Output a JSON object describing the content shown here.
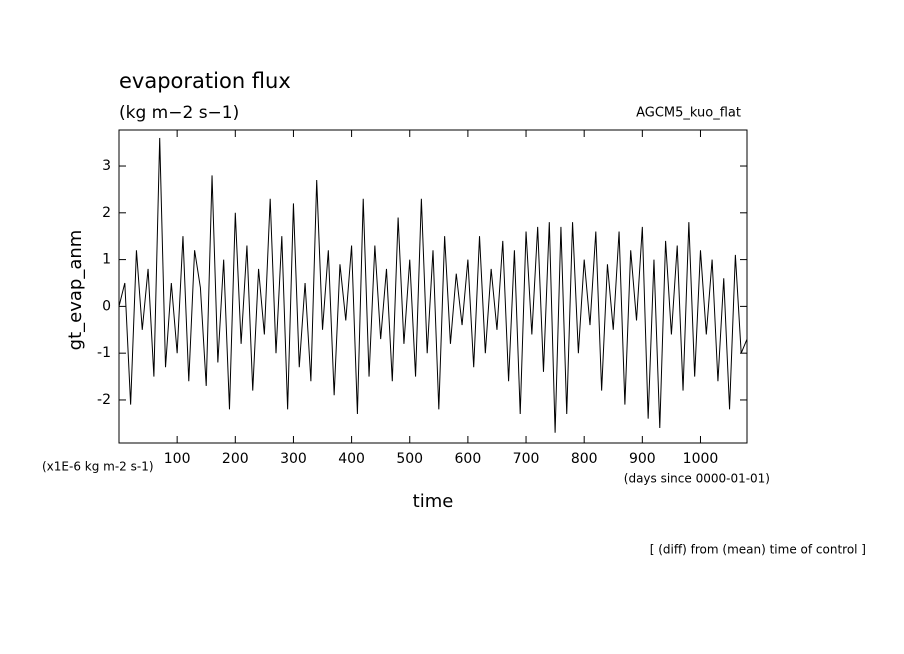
{
  "chart_data": {
    "type": "line",
    "title": "evaporation flux",
    "subtitle": "(kg m−2 s−1)",
    "run_label": "AGCM5_kuo_flat",
    "y_label": "gt_evap_anm",
    "y_unit": "(x1E-6 kg m-2 s-1)",
    "x_label": "time",
    "x_unit": "(days since 0000-01-01)",
    "footnote": "[ (diff) from (mean) time of control ]",
    "xlim": [
      0,
      1080
    ],
    "ylim": [
      -2.92,
      3.77
    ],
    "xticks": [
      100,
      200,
      300,
      400,
      500,
      600,
      700,
      800,
      900,
      1000
    ],
    "yticks": [
      -2,
      -1,
      0,
      1,
      2,
      3
    ],
    "x": [
      0,
      10,
      20,
      30,
      40,
      50,
      60,
      70,
      80,
      90,
      100,
      110,
      120,
      130,
      140,
      150,
      160,
      170,
      180,
      190,
      200,
      210,
      220,
      230,
      240,
      250,
      260,
      270,
      280,
      290,
      300,
      310,
      320,
      330,
      340,
      350,
      360,
      370,
      380,
      390,
      400,
      410,
      420,
      430,
      440,
      450,
      460,
      470,
      480,
      490,
      500,
      510,
      520,
      530,
      540,
      550,
      560,
      570,
      580,
      590,
      600,
      610,
      620,
      630,
      640,
      650,
      660,
      670,
      680,
      690,
      700,
      710,
      720,
      730,
      740,
      750,
      760,
      770,
      780,
      790,
      800,
      810,
      820,
      830,
      840,
      850,
      860,
      870,
      880,
      890,
      900,
      910,
      920,
      930,
      940,
      950,
      960,
      970,
      980,
      990,
      1000,
      1010,
      1020,
      1030,
      1040,
      1050,
      1060,
      1070,
      1080
    ],
    "series": [
      {
        "name": "gt_evap_anm",
        "color": "#000000",
        "values": [
          0,
          0.5,
          -2.1,
          1.2,
          -0.5,
          0.8,
          -1.5,
          3.6,
          -1.3,
          0.5,
          -1.0,
          1.5,
          -1.6,
          1.2,
          0.4,
          -1.7,
          2.8,
          -1.2,
          1.0,
          -2.2,
          2.0,
          -0.8,
          1.3,
          -1.8,
          0.8,
          -0.6,
          2.3,
          -1.0,
          1.5,
          -2.2,
          2.2,
          -1.3,
          0.5,
          -1.6,
          2.7,
          -0.5,
          1.2,
          -1.9,
          0.9,
          -0.3,
          1.3,
          -2.3,
          2.3,
          -1.5,
          1.3,
          -0.7,
          0.8,
          -1.6,
          1.9,
          -0.8,
          1.0,
          -1.5,
          2.3,
          -1.0,
          1.2,
          -2.2,
          1.5,
          -0.8,
          0.7,
          -0.4,
          1.0,
          -1.3,
          1.5,
          -1.0,
          0.8,
          -0.5,
          1.4,
          -1.6,
          1.2,
          -2.3,
          1.6,
          -0.6,
          1.7,
          -1.4,
          1.8,
          -2.7,
          1.7,
          -2.3,
          1.8,
          -1.0,
          1.0,
          -0.4,
          1.6,
          -1.8,
          0.9,
          -0.5,
          1.6,
          -2.1,
          1.2,
          -0.3,
          1.7,
          -2.4,
          1.0,
          -2.6,
          1.4,
          -0.6,
          1.3,
          -1.8,
          1.8,
          -1.5,
          1.2,
          -0.6,
          1.0,
          -1.6,
          0.6,
          -2.2,
          1.1,
          -1.0,
          -0.7
        ]
      }
    ]
  }
}
